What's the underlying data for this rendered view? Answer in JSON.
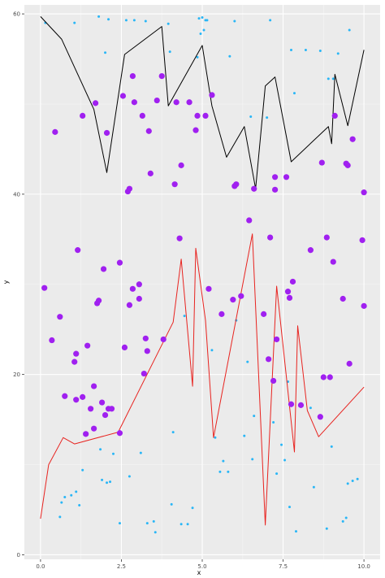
{
  "chart_data": {
    "type": "scatter",
    "title": "",
    "xlabel": "x",
    "ylabel": "y",
    "xlim": [
      -0.5,
      10.5
    ],
    "ylim": [
      -0.5,
      61
    ],
    "grid": true,
    "x_ticks": [
      0.0,
      2.5,
      5.0,
      7.5,
      10.0
    ],
    "x_tick_labels": [
      "0.0",
      "2.5",
      "5.0",
      "7.5",
      "10.0"
    ],
    "y_ticks": [
      0,
      20,
      40,
      60
    ],
    "y_tick_labels": [
      "0",
      "20",
      "40",
      "60"
    ],
    "colors": {
      "panel": "#ebebeb",
      "grid_major": "#ffffff",
      "small_points": "#29b6f6",
      "large_points": "#a020f0",
      "black_line": "#000000",
      "red_line": "#e8231f"
    },
    "lines": [
      {
        "color": "black",
        "x": [
          0.0,
          0.65,
          1.65,
          2.05,
          2.6,
          3.75,
          3.95,
          5.0,
          5.3,
          5.75,
          6.3,
          6.65,
          6.95,
          7.25,
          7.75,
          8.9,
          9.0,
          9.1,
          9.5,
          10.0
        ],
        "y": [
          59.7,
          57.2,
          49.4,
          42.4,
          55.5,
          58.6,
          49.8,
          56.5,
          49.8,
          44.1,
          47.5,
          40.6,
          52.0,
          53.0,
          43.6,
          47.5,
          45.6,
          53.3,
          47.6,
          56.0
        ]
      },
      {
        "color": "red",
        "x": [
          0.0,
          0.25,
          0.7,
          1.05,
          2.4,
          4.1,
          4.35,
          4.7,
          4.8,
          5.1,
          5.35,
          6.55,
          6.95,
          7.3,
          7.85,
          7.95,
          8.25,
          8.6,
          10.0
        ],
        "y": [
          4.0,
          10.0,
          13.0,
          12.3,
          13.6,
          25.8,
          32.8,
          18.7,
          34.0,
          26.0,
          13.0,
          35.6,
          3.3,
          29.8,
          11.4,
          25.4,
          16.0,
          13.1,
          18.6
        ]
      }
    ],
    "series": [
      {
        "style": "large",
        "x": [
          0.12,
          0.35,
          0.45,
          0.6,
          0.75,
          1.05,
          1.1,
          1.1,
          1.15,
          1.3,
          1.3,
          1.4,
          1.45,
          1.55,
          1.65,
          1.65,
          1.7,
          1.75,
          1.8,
          1.9,
          1.95,
          2.0,
          2.05,
          2.1,
          2.2,
          2.45,
          2.45,
          2.55,
          2.6,
          2.7,
          2.75,
          2.75,
          2.85,
          2.85,
          2.9,
          3.05,
          3.05,
          3.15,
          3.2,
          3.25,
          3.3,
          3.35,
          3.4,
          3.6,
          3.75,
          3.8,
          4.15,
          4.2,
          4.3,
          4.35,
          4.6,
          4.8,
          4.85,
          5.1,
          5.2,
          5.3,
          5.6,
          5.95,
          6.0,
          6.05,
          6.2,
          6.45,
          6.6,
          6.9,
          7.05,
          7.1,
          7.2,
          7.25,
          7.25,
          7.3,
          7.6,
          7.65,
          7.7,
          7.75,
          7.8,
          8.05,
          8.35,
          8.65,
          8.7,
          8.75,
          8.85,
          8.95,
          9.05,
          9.1,
          9.35,
          9.45,
          9.5,
          9.55,
          9.65,
          9.95,
          10.0,
          10.0
        ],
        "y": [
          29.6,
          23.8,
          46.9,
          26.4,
          17.6,
          21.4,
          22.3,
          17.2,
          33.8,
          48.7,
          17.5,
          13.4,
          23.2,
          16.2,
          14.0,
          18.7,
          50.1,
          27.9,
          28.2,
          16.9,
          31.7,
          15.5,
          46.8,
          16.2,
          16.2,
          32.4,
          13.5,
          50.9,
          23.0,
          40.3,
          40.6,
          27.7,
          53.1,
          29.5,
          50.2,
          30.0,
          28.4,
          48.7,
          20.1,
          24.0,
          22.6,
          47.0,
          42.3,
          50.4,
          53.1,
          23.9,
          41.1,
          50.2,
          35.1,
          43.2,
          50.2,
          47.1,
          48.7,
          48.7,
          29.5,
          51.0,
          26.7,
          28.3,
          40.9,
          41.1,
          28.7,
          37.1,
          40.6,
          26.7,
          21.7,
          35.2,
          19.3,
          41.9,
          40.5,
          23.9,
          41.9,
          29.2,
          28.5,
          16.7,
          30.3,
          16.6,
          33.8,
          15.3,
          43.5,
          19.7,
          35.2,
          19.7,
          32.5,
          48.7,
          28.4,
          43.4,
          43.2,
          21.2,
          46.1,
          34.9,
          40.2,
          27.6
        ]
      },
      {
        "style": "small",
        "x": [
          0.15,
          0.6,
          0.65,
          0.75,
          0.95,
          1.05,
          1.1,
          1.2,
          1.3,
          1.8,
          1.85,
          1.9,
          2.0,
          2.05,
          2.1,
          2.15,
          2.25,
          2.45,
          2.65,
          2.75,
          2.9,
          3.1,
          3.25,
          3.3,
          3.5,
          3.55,
          3.95,
          4.0,
          4.05,
          4.1,
          4.35,
          4.45,
          4.55,
          4.7,
          4.85,
          4.9,
          4.95,
          5.0,
          5.05,
          5.1,
          5.15,
          5.3,
          5.4,
          5.55,
          5.65,
          5.8,
          5.85,
          6.0,
          6.05,
          6.3,
          6.4,
          6.5,
          6.55,
          6.6,
          7.0,
          7.1,
          7.2,
          7.3,
          7.45,
          7.55,
          7.65,
          7.7,
          7.75,
          7.85,
          7.9,
          8.05,
          8.2,
          8.35,
          8.45,
          8.65,
          8.85,
          8.9,
          9.0,
          9.05,
          9.2,
          9.35,
          9.45,
          9.5,
          9.55,
          9.65,
          9.8
        ],
        "y": [
          59.0,
          4.2,
          5.8,
          6.4,
          6.6,
          59.0,
          7.0,
          5.5,
          9.4,
          59.7,
          11.7,
          8.3,
          55.7,
          8.0,
          59.4,
          8.1,
          11.2,
          3.5,
          59.3,
          8.7,
          59.3,
          11.3,
          59.2,
          3.5,
          3.7,
          2.5,
          58.9,
          55.8,
          5.6,
          13.6,
          3.4,
          26.5,
          3.4,
          5.2,
          55.2,
          59.5,
          57.8,
          59.6,
          58.2,
          59.3,
          59.3,
          22.7,
          13.0,
          9.2,
          10.4,
          9.2,
          55.3,
          59.2,
          26.0,
          13.2,
          21.4,
          48.6,
          10.6,
          15.4,
          48.5,
          59.3,
          14.7,
          9.0,
          12.2,
          10.5,
          19.2,
          5.3,
          56.0,
          51.2,
          2.6,
          16.7,
          56.0,
          16.3,
          7.5,
          55.9,
          2.9,
          52.8,
          12.0,
          52.8,
          55.6,
          3.7,
          4.1,
          7.9,
          58.2,
          8.2,
          8.4
        ]
      }
    ]
  }
}
